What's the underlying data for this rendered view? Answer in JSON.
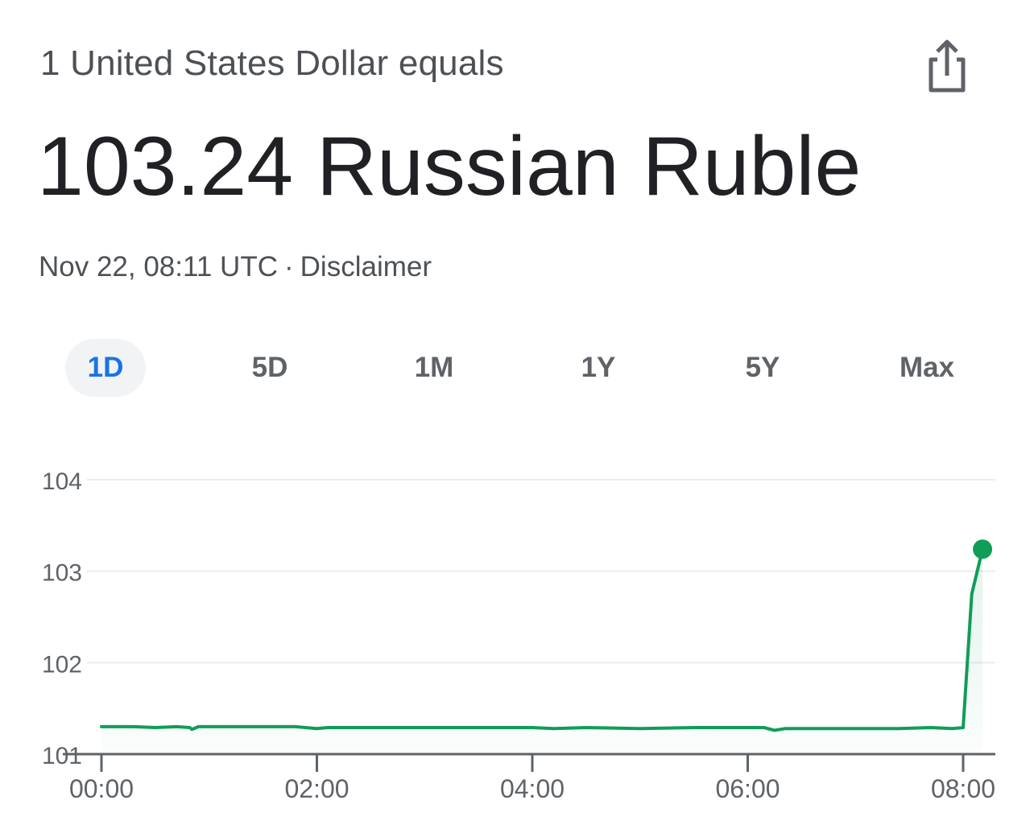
{
  "header": {
    "subtitle": "1 United States Dollar equals",
    "headline": "103.24 Russian Ruble",
    "timestamp": "Nov 22, 08:11 UTC",
    "separator": "·",
    "disclaimer": "Disclaimer",
    "share_icon": "share-icon"
  },
  "tabs": [
    {
      "label": "1D",
      "active": true
    },
    {
      "label": "5D",
      "active": false
    },
    {
      "label": "1M",
      "active": false
    },
    {
      "label": "1Y",
      "active": false
    },
    {
      "label": "5Y",
      "active": false
    },
    {
      "label": "Max",
      "active": false
    }
  ],
  "colors": {
    "line": "#0f9d58",
    "active_tab": "#1a73e8",
    "active_tab_bg": "#f1f3f4"
  },
  "chart_data": {
    "type": "line",
    "x_ticks": [
      "00:00",
      "02:00",
      "04:00",
      "06:00",
      "08:00"
    ],
    "y_ticks": [
      101,
      102,
      103,
      104
    ],
    "ylim": [
      101,
      104
    ],
    "xlim_hours": [
      0,
      8.3
    ],
    "grid": true,
    "series": [
      {
        "points": [
          [
            0,
            101.3
          ],
          [
            0.3,
            101.3
          ],
          [
            0.5,
            101.29
          ],
          [
            0.7,
            101.3
          ],
          [
            0.82,
            101.29
          ],
          [
            0.84,
            101.27
          ],
          [
            0.9,
            101.3
          ],
          [
            1.2,
            101.3
          ],
          [
            1.5,
            101.3
          ],
          [
            1.8,
            101.3
          ],
          [
            2.0,
            101.28
          ],
          [
            2.1,
            101.29
          ],
          [
            2.5,
            101.29
          ],
          [
            2.8,
            101.29
          ],
          [
            3.0,
            101.29
          ],
          [
            3.5,
            101.29
          ],
          [
            4.0,
            101.29
          ],
          [
            4.2,
            101.28
          ],
          [
            4.5,
            101.29
          ],
          [
            5.0,
            101.28
          ],
          [
            5.5,
            101.29
          ],
          [
            6.0,
            101.29
          ],
          [
            6.15,
            101.29
          ],
          [
            6.25,
            101.26
          ],
          [
            6.35,
            101.28
          ],
          [
            6.8,
            101.28
          ],
          [
            7.0,
            101.28
          ],
          [
            7.4,
            101.28
          ],
          [
            7.7,
            101.29
          ],
          [
            7.9,
            101.28
          ],
          [
            8.0,
            101.29
          ],
          [
            8.08,
            102.75
          ],
          [
            8.18,
            103.24
          ]
        ],
        "last_point": [
          8.18,
          103.24
        ]
      }
    ]
  }
}
